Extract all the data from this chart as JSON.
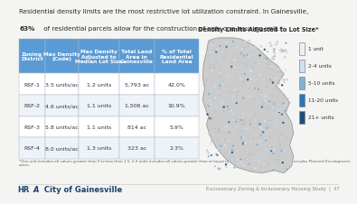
{
  "title_line1": "Residential density limits are the most restrictive lot utilization constraint. In Gainesville,",
  "title_line2": "63% of residential parcels allow for the construction of only one housing unit.*",
  "background_color": "#f4f4f2",
  "table_header_bg": "#5b9bd5",
  "table_header_color": "#ffffff",
  "table_row_bg_even": "#ffffff",
  "table_row_bg_odd": "#eef3f9",
  "col_headers": [
    "Zoning\nDistrict",
    "Max Density\n(Code)",
    "Max Density\nAdjusted to\nMedian Lot Size",
    "Total Land\nArea in\nGainesville",
    "% of Total\nResidential\nLand Area"
  ],
  "rows": [
    [
      "RSF-1",
      "3.5 units/ac",
      "1.2 units",
      "5,793 ac",
      "42.0%"
    ],
    [
      "RSF-2",
      "4.6 units/ac",
      "1.1 units",
      "1,506 ac",
      "10.9%"
    ],
    [
      "RSF-3",
      "5.8 units/ac",
      "1.1 units",
      "814 ac",
      "5.9%"
    ],
    [
      "RSF-4",
      "8.0 units/ac",
      "1.3 units",
      "323 ac",
      "2.3%"
    ]
  ],
  "footnote": "*One unit includes all values greater than 0 to less than 1.5, 2-4 units includes all values greater than or equal to 1.5 and less than 4.5, and so on. Excludes Planned Development zones.",
  "map_title": "Density Limits Adjusted to Lot Size*",
  "legend_labels": [
    "1 unit",
    "2-4 units",
    "5-10 units",
    "11-20 units",
    "21+ units"
  ],
  "legend_colors": [
    "#f0f0f0",
    "#cce0f5",
    "#7eb3d9",
    "#2f75b6",
    "#1f4e79"
  ],
  "footer_right": "Exclusionary Zoning & Inclusionary Housing Study  |  47",
  "title_fontsize": 5.2,
  "table_header_fontsize": 4.2,
  "table_cell_fontsize": 4.5,
  "footnote_fontsize": 3.0,
  "footer_fontsize": 3.8,
  "map_title_fontsize": 4.8,
  "legend_fontsize": 4.2
}
